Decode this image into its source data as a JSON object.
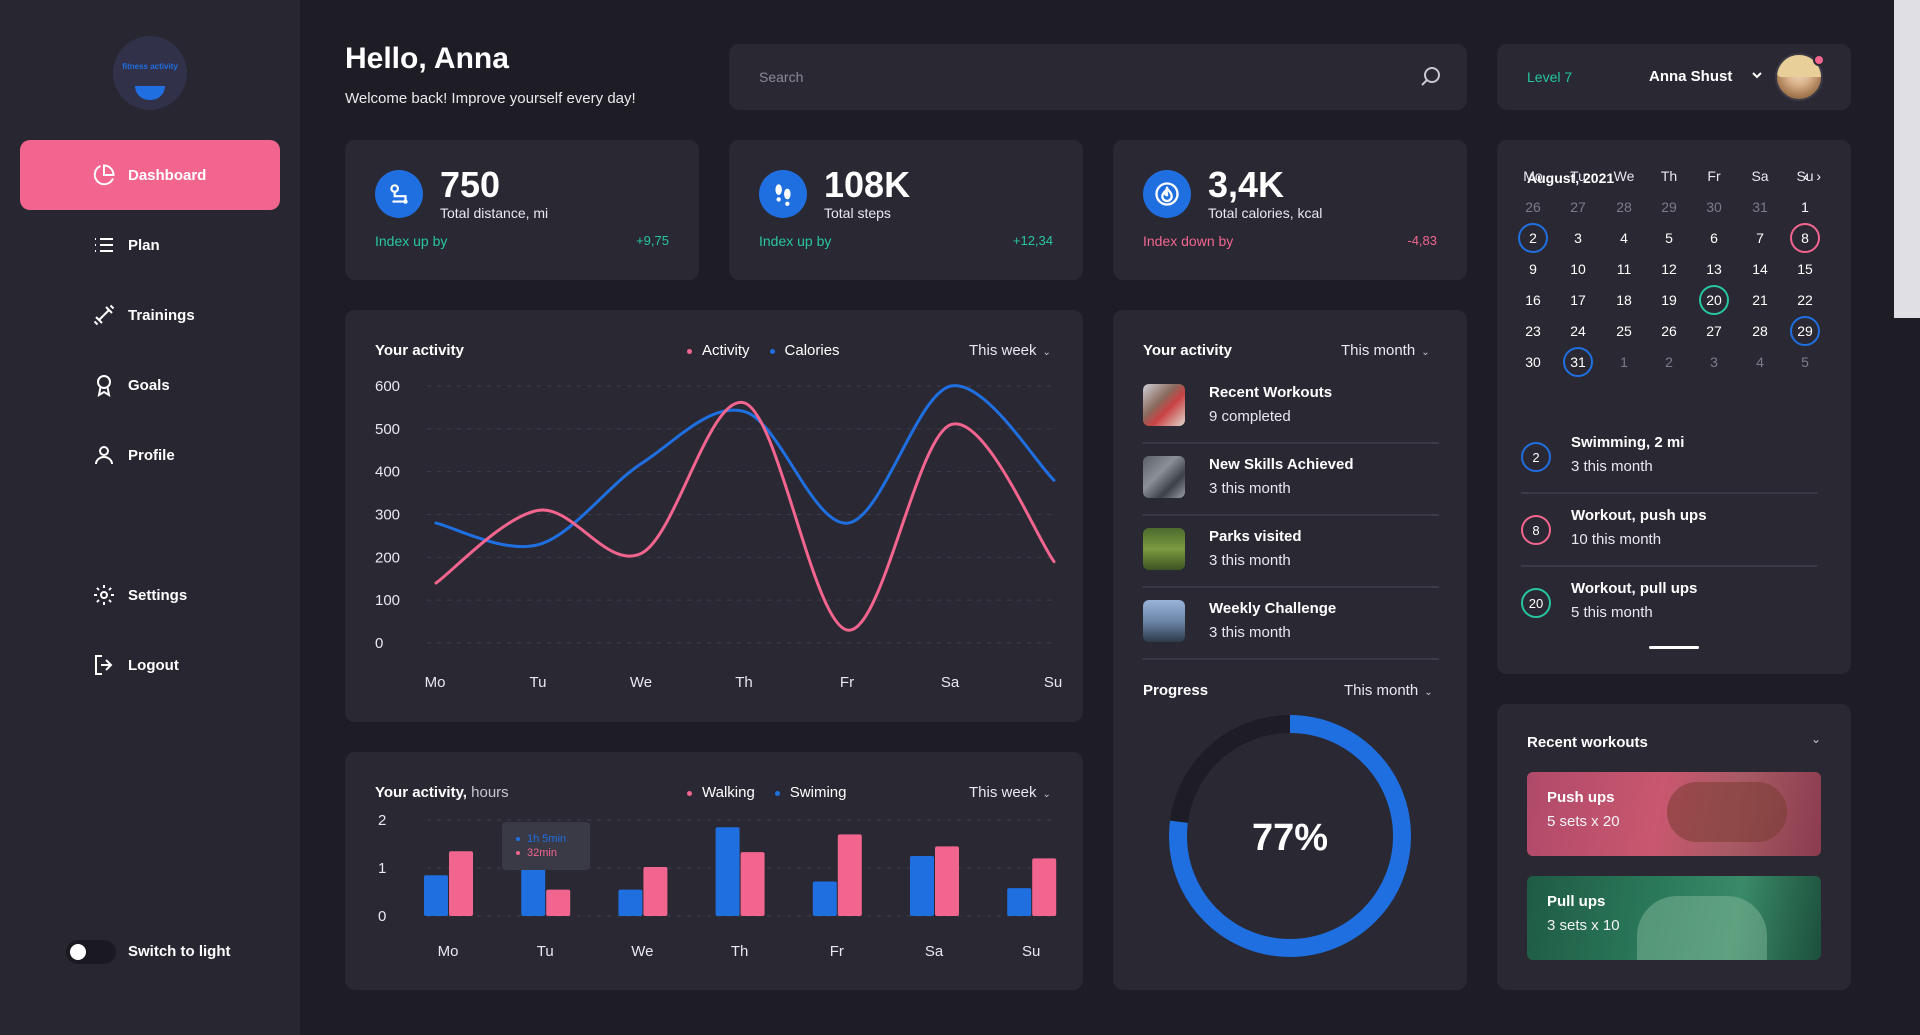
{
  "sidebar": {
    "logo": "fitness activity",
    "items": [
      {
        "label": "Dashboard",
        "icon": "pie-chart-icon",
        "active": true
      },
      {
        "label": "Plan",
        "icon": "list-icon"
      },
      {
        "label": "Trainings",
        "icon": "dumbbell-icon"
      },
      {
        "label": "Goals",
        "icon": "award-icon"
      },
      {
        "label": "Profile",
        "icon": "user-icon"
      },
      {
        "label": "Settings",
        "icon": "gear-icon"
      },
      {
        "label": "Logout",
        "icon": "logout-icon"
      }
    ],
    "toggle_label": "Switch to light"
  },
  "header": {
    "greeting": "Hello, Anna",
    "welcome": "Welcome back! Improve yourself every day!",
    "search_placeholder": "Search",
    "level": "Level 7",
    "user_name": "Anna Shust"
  },
  "stats": [
    {
      "value": "750",
      "label": "Total distance, mi",
      "index": "Index up by",
      "delta": "+9,75",
      "trend": "up",
      "icon": "route-icon"
    },
    {
      "value": "108K",
      "label": "Total steps",
      "index": "Index up by",
      "delta": "+12,34",
      "trend": "up",
      "icon": "footprints-icon"
    },
    {
      "value": "3,4K",
      "label": "Total calories, kcal",
      "index": "Index down by",
      "delta": "-4,83",
      "trend": "down",
      "icon": "flame-icon"
    }
  ],
  "activity_chart": {
    "title": "Your activity",
    "legend": [
      "Activity",
      "Calories"
    ],
    "period": "This week"
  },
  "hours_chart": {
    "title": "Your activity,",
    "title_unit": "hours",
    "legend": [
      "Walking",
      "Swiming"
    ],
    "period": "This week",
    "tooltip": [
      "1h 5min",
      "32min"
    ]
  },
  "chart_data": [
    {
      "type": "line",
      "x": [
        "Mo",
        "Tu",
        "We",
        "Th",
        "Fr",
        "Sa",
        "Su"
      ],
      "ylim": [
        0,
        600
      ],
      "yticks": [
        0,
        100,
        200,
        300,
        400,
        500,
        600
      ],
      "series": [
        {
          "name": "Activity",
          "color": "#f2658e",
          "values": [
            140,
            310,
            210,
            560,
            30,
            510,
            190
          ]
        },
        {
          "name": "Calories",
          "color": "#1f6fe0",
          "values": [
            280,
            230,
            420,
            540,
            280,
            600,
            380
          ]
        }
      ],
      "grid": true,
      "legend_position": "top"
    },
    {
      "type": "bar",
      "categories": [
        "Mo",
        "Tu",
        "We",
        "Th",
        "Fr",
        "Sa",
        "Su"
      ],
      "ylim": [
        0,
        2
      ],
      "yticks": [
        0,
        1,
        2
      ],
      "series": [
        {
          "name": "Walking",
          "color": "#1f6fe0",
          "values": [
            0.85,
            1.08,
            0.55,
            1.85,
            0.72,
            1.25,
            0.58
          ]
        },
        {
          "name": "Swiming",
          "color": "#f2658e",
          "values": [
            1.35,
            0.55,
            1.02,
            1.33,
            1.7,
            1.45,
            1.2
          ]
        }
      ],
      "grid": true,
      "legend_position": "top"
    },
    {
      "type": "pie",
      "title": "Progress",
      "value": 77,
      "label": "77%",
      "color": "#1f6fe0"
    }
  ],
  "activity_list": {
    "title": "Your activity",
    "period": "This month",
    "items": [
      {
        "title": "Recent Workouts",
        "sub": "9 completed",
        "thumb": "workout-photo"
      },
      {
        "title": "New Skills Achieved",
        "sub": "3 this month",
        "thumb": "skills-photo"
      },
      {
        "title": "Parks visited",
        "sub": "3 this month",
        "thumb": "park-photo"
      },
      {
        "title": "Weekly Challenge",
        "sub": "3 this month",
        "thumb": "challenge-photo"
      }
    ]
  },
  "progress": {
    "title": "Progress",
    "period": "This month",
    "value": "77%"
  },
  "calendar": {
    "month": "August, 2021",
    "prev": "‹",
    "next": "›",
    "days_of_week": [
      "Mo",
      "Tu",
      "We",
      "Th",
      "Fr",
      "Sa",
      "Su"
    ],
    "weeks": [
      [
        "26",
        "27",
        "28",
        "29",
        "30",
        "31",
        "1"
      ],
      [
        "2",
        "3",
        "4",
        "5",
        "6",
        "7",
        "8"
      ],
      [
        "9",
        "10",
        "11",
        "12",
        "13",
        "14",
        "15"
      ],
      [
        "16",
        "17",
        "18",
        "19",
        "20",
        "21",
        "22"
      ],
      [
        "23",
        "24",
        "25",
        "26",
        "27",
        "28",
        "29"
      ],
      [
        "30",
        "31",
        "1",
        "2",
        "3",
        "4",
        "5"
      ]
    ],
    "events": [
      {
        "day": "2",
        "title": "Swimming, 2 mi",
        "sub": "3 this month",
        "color": "#1f6fe0"
      },
      {
        "day": "8",
        "title": "Workout, push ups",
        "sub": "10 this month",
        "color": "#f2658e"
      },
      {
        "day": "20",
        "title": "Workout, pull ups",
        "sub": "5 this month",
        "color": "#27c6a0"
      }
    ]
  },
  "recent_workouts": {
    "title": "Recent workouts",
    "items": [
      {
        "name": "Push ups",
        "sets": "5 sets x 20"
      },
      {
        "name": "Pull ups",
        "sets": "3 sets x 10"
      }
    ]
  }
}
